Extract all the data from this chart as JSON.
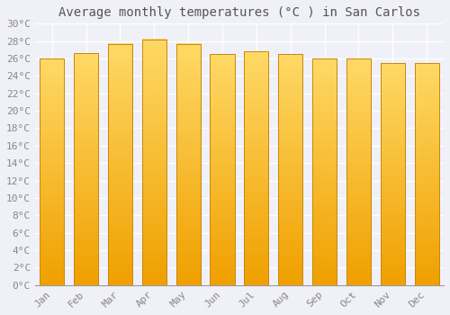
{
  "title": "Average monthly temperatures (°C ) in San Carlos",
  "months": [
    "Jan",
    "Feb",
    "Mar",
    "Apr",
    "May",
    "Jun",
    "Jul",
    "Aug",
    "Sep",
    "Oct",
    "Nov",
    "Dec"
  ],
  "values": [
    26.0,
    26.6,
    27.7,
    28.2,
    27.7,
    26.5,
    26.8,
    26.5,
    26.0,
    26.0,
    25.5,
    25.5
  ],
  "bar_color_center": "#FFD966",
  "bar_color_edge": "#F5A623",
  "bar_color_bottom": "#F0A000",
  "ylim": [
    0,
    30
  ],
  "ytick_step": 2,
  "background_color": "#f0f0f8",
  "plot_bg_color": "#f0f0f8",
  "grid_color": "#ffffff",
  "title_fontsize": 10,
  "tick_fontsize": 8,
  "font_family": "monospace"
}
